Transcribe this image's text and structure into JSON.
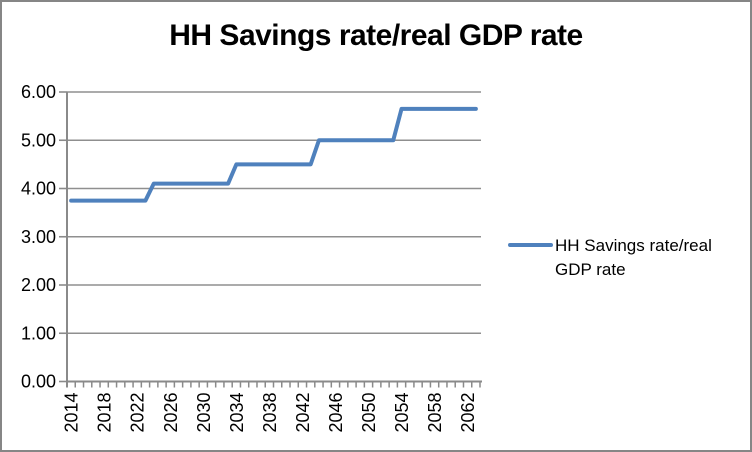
{
  "colors": {
    "series": "#4F81BD",
    "grid": "#8F8F8F",
    "axis": "#8A8A8A",
    "border": "#868686",
    "text": "#000000",
    "background": "#FFFFFF"
  },
  "chart_data": {
    "type": "line",
    "title": "HH Savings rate/real GDP rate",
    "xlabel": "",
    "ylabel": "",
    "ylim": [
      0,
      6
    ],
    "ytick_step": 1,
    "ytick_labels": [
      "0.00",
      "1.00",
      "2.00",
      "3.00",
      "4.00",
      "5.00",
      "6.00"
    ],
    "grid": "horizontal",
    "legend_position": "right",
    "x": [
      2014,
      2015,
      2016,
      2017,
      2018,
      2019,
      2020,
      2021,
      2022,
      2023,
      2024,
      2025,
      2026,
      2027,
      2028,
      2029,
      2030,
      2031,
      2032,
      2033,
      2034,
      2035,
      2036,
      2037,
      2038,
      2039,
      2040,
      2041,
      2042,
      2043,
      2044,
      2045,
      2046,
      2047,
      2048,
      2049,
      2050,
      2051,
      2052,
      2053,
      2054,
      2055,
      2056,
      2057,
      2058,
      2059,
      2060,
      2061,
      2062,
      2063
    ],
    "xtick_labels": [
      "2014",
      "2018",
      "2022",
      "2026",
      "2030",
      "2034",
      "2038",
      "2042",
      "2046",
      "2050",
      "2054",
      "2058",
      "2062"
    ],
    "series": [
      {
        "name": "HH Savings rate/real GDP rate",
        "color": "#4F81BD",
        "values": [
          3.75,
          3.75,
          3.75,
          3.75,
          3.75,
          3.75,
          3.75,
          3.75,
          3.75,
          3.75,
          4.1,
          4.1,
          4.1,
          4.1,
          4.1,
          4.1,
          4.1,
          4.1,
          4.1,
          4.1,
          4.5,
          4.5,
          4.5,
          4.5,
          4.5,
          4.5,
          4.5,
          4.5,
          4.5,
          4.5,
          5.0,
          5.0,
          5.0,
          5.0,
          5.0,
          5.0,
          5.0,
          5.0,
          5.0,
          5.0,
          5.65,
          5.65,
          5.65,
          5.65,
          5.65,
          5.65,
          5.65,
          5.65,
          5.65,
          5.65
        ]
      }
    ]
  }
}
